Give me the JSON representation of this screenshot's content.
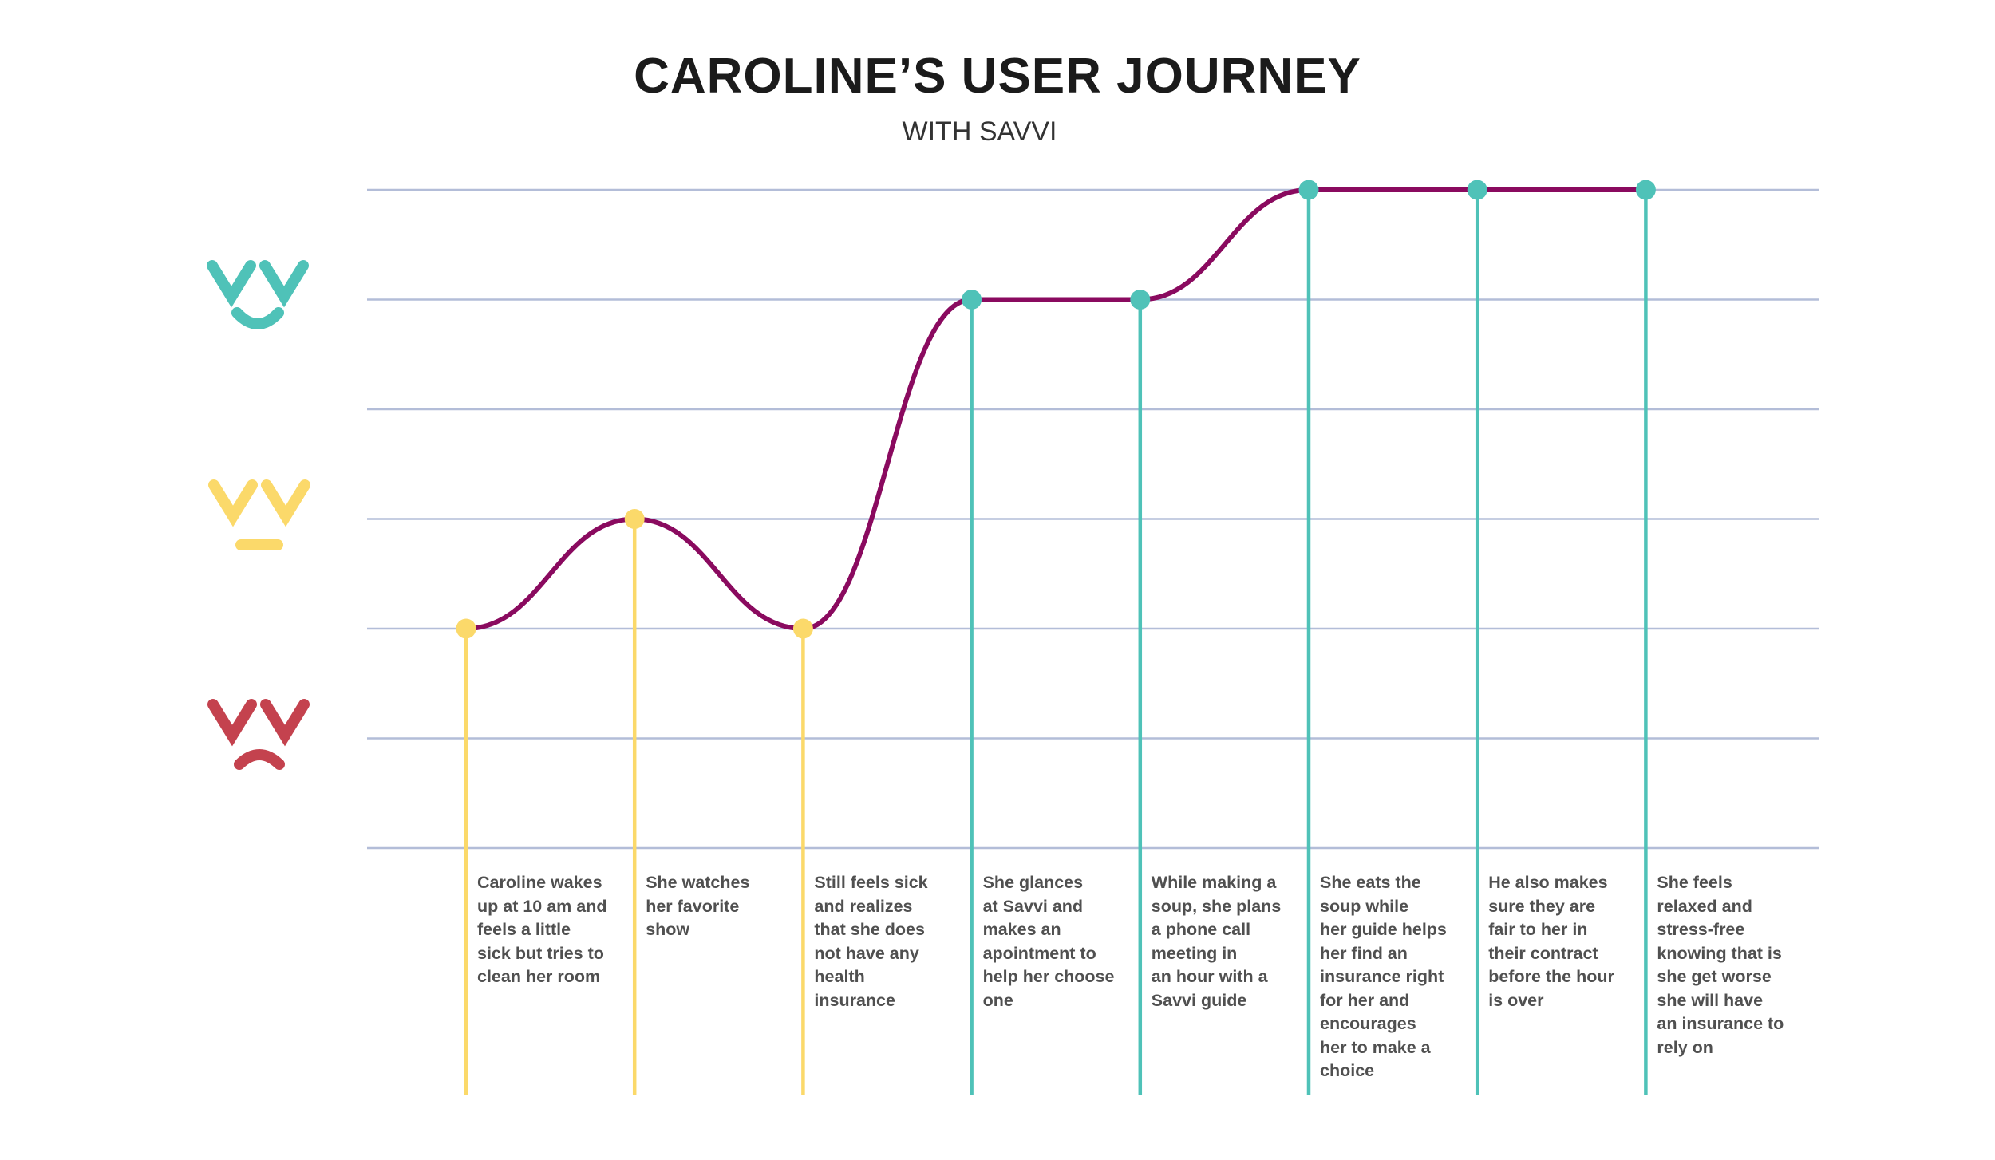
{
  "header": {
    "title": "CAROLINE’S USER JOURNEY",
    "subtitle": "WITH SAVVI"
  },
  "colors": {
    "curve": "#8a0a5f",
    "gridline": "#b3bdd8",
    "happy": "#4fc2b8",
    "neutral": "#fbd96a",
    "sad": "#c4424e"
  },
  "moods": [
    {
      "name": "happy",
      "icon": "happy-face-icon",
      "color": "#4fc2b8"
    },
    {
      "name": "neutral",
      "icon": "neutral-face-icon",
      "color": "#fbd96a"
    },
    {
      "name": "sad",
      "icon": "sad-face-icon",
      "color": "#c4424e"
    }
  ],
  "chart_data": {
    "type": "line",
    "levels": 7,
    "grid": true,
    "steps": [
      {
        "level": 2,
        "mood": "neutral",
        "text": "Caroline wakes\nup at 10 am and\nfeels a little\nsick but tries to\nclean her room"
      },
      {
        "level": 3,
        "mood": "neutral",
        "text": "She watches\nher favorite\nshow"
      },
      {
        "level": 2,
        "mood": "neutral",
        "text": "Still feels sick\nand realizes\nthat she does\nnot have any\nhealth\ninsurance"
      },
      {
        "level": 5,
        "mood": "happy",
        "text": "She glances\nat Savvi and\nmakes an\napointment to\nhelp her choose\none"
      },
      {
        "level": 5,
        "mood": "happy",
        "text": "While making a\nsoup, she plans\na phone call\nmeeting in\nan hour with a\nSavvi guide"
      },
      {
        "level": 6,
        "mood": "happy",
        "text": "She eats the\nsoup while\nher guide helps\nher find an\ninsurance right\nfor her and\nencourages\nher to make a\nchoice"
      },
      {
        "level": 6,
        "mood": "happy",
        "text": "He also makes\nsure they are\nfair to her in\ntheir contract\nbefore the hour\nis over"
      },
      {
        "level": 6,
        "mood": "happy",
        "text": "She feels\nrelaxed and\nstress-free\nknowing that is\nshe get worse\nshe will have\nan insurance to\nrely on"
      }
    ]
  }
}
